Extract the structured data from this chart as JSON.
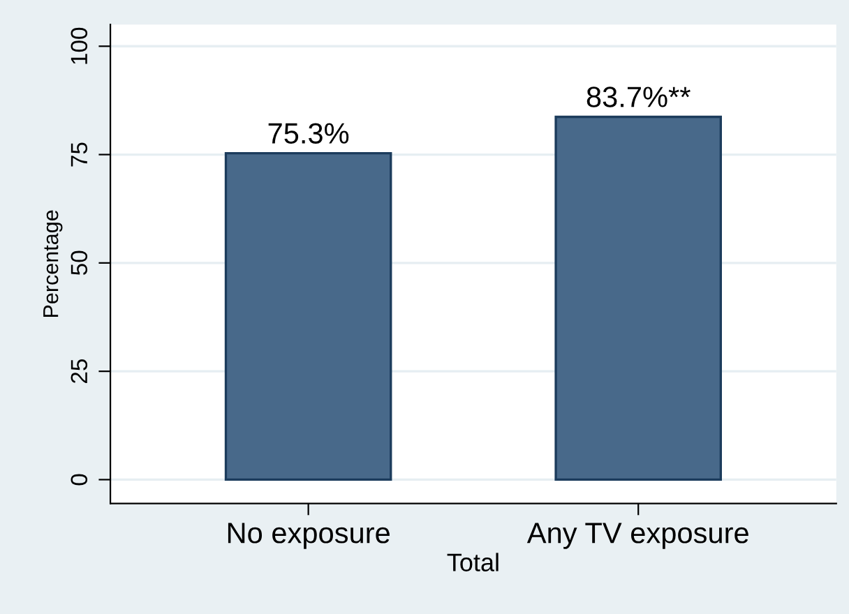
{
  "chart_data": {
    "type": "bar",
    "categories": [
      "No exposure",
      "Any TV exposure"
    ],
    "values": [
      75.3,
      83.7
    ],
    "value_labels": [
      "75.3%",
      "83.7%**"
    ],
    "color": "#48698a",
    "xlabel": "Total",
    "ylabel": "Percentage",
    "ylim": [
      -5.5,
      105
    ],
    "yticks": [
      0,
      25,
      50,
      75,
      100
    ],
    "grid": "y",
    "legend": false
  }
}
